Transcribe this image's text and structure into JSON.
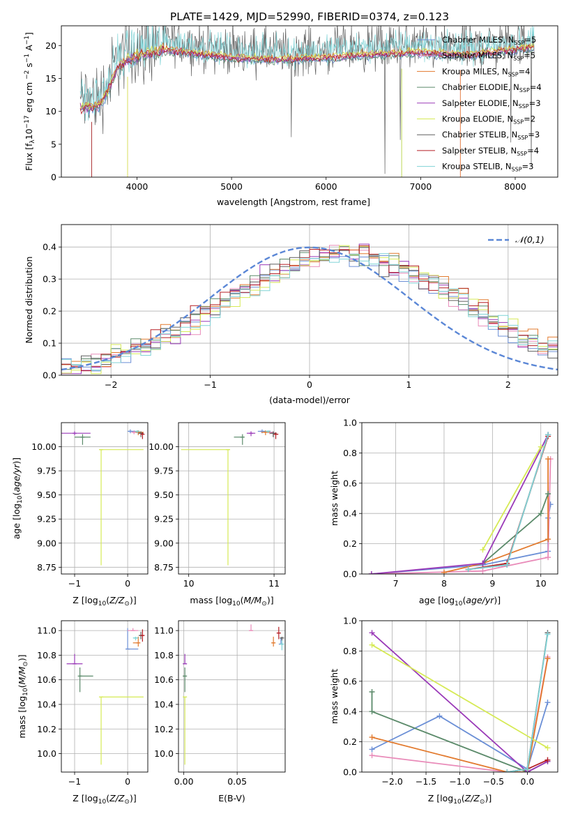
{
  "figure_title": "PLATE=1429, MJD=52990, FIBERID=0374, z=0.123",
  "models": [
    {
      "name": "Chabrier MILES, N",
      "nssp": "5",
      "color": "#6b8fd6"
    },
    {
      "name": "Salpeter MILES, N",
      "nssp": "5",
      "color": "#e98bb9"
    },
    {
      "name": "Kroupa MILES, N",
      "nssp": "4",
      "color": "#e27a2e"
    },
    {
      "name": "Chabrier ELODIE, N",
      "nssp": "4",
      "color": "#5b8a6a"
    },
    {
      "name": "Salpeter ELODIE, N",
      "nssp": "3",
      "color": "#9a3ab8"
    },
    {
      "name": "Kroupa ELODIE, N",
      "nssp": "2",
      "color": "#d6ea55"
    },
    {
      "name": "Chabrier STELIB, N",
      "nssp": "3",
      "color": "#606060"
    },
    {
      "name": "Salpeter STELIB, N",
      "nssp": "4",
      "color": "#b51e24"
    },
    {
      "name": "Kroupa STELIB, N",
      "nssp": "3",
      "color": "#7fd3d6"
    }
  ],
  "nssp_sub": "SSP",
  "chart_data": [
    {
      "id": "spectrum",
      "type": "line",
      "xlabel": "wavelength [Angstrom, rest frame]",
      "ylabel_parts": [
        "Flux [f",
        "λ",
        "10",
        "−17",
        "erg cm",
        "−2",
        "s",
        "−1",
        "A",
        "−1",
        "]"
      ],
      "xlim": [
        3200,
        8450
      ],
      "ylim": [
        0,
        23
      ],
      "xticks": [
        "4000",
        "5000",
        "6000",
        "7000",
        "8000"
      ],
      "yticks": [
        "0",
        "5",
        "10",
        "15",
        "20"
      ],
      "data_start": 3400,
      "data_end": 8200,
      "continuum_knots": [
        [
          3400,
          10.2
        ],
        [
          3600,
          10.5
        ],
        [
          3700,
          13
        ],
        [
          3800,
          16.5
        ],
        [
          4000,
          18
        ],
        [
          4300,
          19
        ],
        [
          4600,
          18.5
        ],
        [
          5000,
          17.8
        ],
        [
          5500,
          17.5
        ],
        [
          6000,
          17.8
        ],
        [
          6500,
          18.3
        ],
        [
          7000,
          18.6
        ],
        [
          7500,
          18.2
        ],
        [
          8000,
          19
        ],
        [
          8200,
          19.5
        ]
      ],
      "gray_spectrum_offset": 1.5
    },
    {
      "id": "residuals",
      "type": "step-histogram",
      "xlabel": "(data-model)/error",
      "ylabel": "Normed distribution",
      "xlim": [
        -2.5,
        2.5
      ],
      "ylim": [
        0,
        0.47
      ],
      "xticks": [
        "−2",
        "−1",
        "0",
        "1",
        "2"
      ],
      "yticks": [
        "0.0",
        "0.1",
        "0.2",
        "0.3",
        "0.4"
      ],
      "reference_label": "𝒩(0,1)",
      "reference_color": "#5b87d6",
      "bin_width": 0.1,
      "peak_center": 0.35,
      "peak_sigma": 1.15,
      "peak_height": 0.38
    },
    {
      "id": "age_vs_Z",
      "type": "errorbar",
      "xlabel": "Z [log10(Z/Z☉)]",
      "ylabel": "age  [log10(age/yr)]",
      "xlim": [
        -1.25,
        0.38
      ],
      "ylim": [
        8.68,
        10.25
      ],
      "xticks": [
        "−1",
        "0"
      ],
      "yticks": [
        "8.75",
        "9.00",
        "9.25",
        "9.50",
        "9.75",
        "10.00"
      ],
      "points": [
        {
          "m": 4,
          "x": -1.0,
          "y": 10.14,
          "xe": [
            0.3,
            0.3
          ],
          "ye": [
            0.02,
            0.02
          ]
        },
        {
          "m": 3,
          "x": -0.85,
          "y": 10.1,
          "xe": [
            0.15,
            0.15
          ],
          "ye": [
            0.08,
            0.03
          ]
        },
        {
          "m": 5,
          "x": -0.5,
          "y": 9.97,
          "xe": [
            0.0,
            0.8
          ],
          "ye": [
            1.2,
            0.0
          ]
        },
        {
          "m": 0,
          "x": 0.05,
          "y": 10.16,
          "xe": [
            0.05,
            0.1
          ],
          "ye": [
            0.02,
            0.02
          ]
        },
        {
          "m": 1,
          "x": 0.12,
          "y": 10.15,
          "xe": [
            0.05,
            0.1
          ],
          "ye": [
            0.02,
            0.02
          ]
        },
        {
          "m": 2,
          "x": 0.2,
          "y": 10.15,
          "xe": [
            0.05,
            0.1
          ],
          "ye": [
            0.03,
            0.02
          ]
        },
        {
          "m": 6,
          "x": 0.25,
          "y": 10.14,
          "xe": [
            0.05,
            0.05
          ],
          "ye": [
            0.04,
            0.02
          ]
        },
        {
          "m": 7,
          "x": 0.28,
          "y": 10.13,
          "xe": [
            0.03,
            0.02
          ],
          "ye": [
            0.05,
            0.02
          ]
        },
        {
          "m": 8,
          "x": 0.18,
          "y": 10.16,
          "xe": [
            0.04,
            0.05
          ],
          "ye": [
            0.02,
            0.01
          ]
        }
      ]
    },
    {
      "id": "age_vs_mass",
      "type": "errorbar",
      "xlabel": "mass [log10(M/M☉)]",
      "ylabel": "",
      "xlim": [
        9.88,
        11.13
      ],
      "ylim": [
        8.68,
        10.25
      ],
      "xticks": [
        "10",
        "11"
      ],
      "yticks": [
        "8.75",
        "9.00",
        "9.25",
        "9.50",
        "9.75",
        "10.00"
      ],
      "points": [
        {
          "m": 5,
          "x": 10.46,
          "y": 9.97,
          "xe": [
            0.55,
            0.0
          ],
          "ye": [
            1.2,
            0.0
          ]
        },
        {
          "m": 3,
          "x": 10.63,
          "y": 10.1,
          "xe": [
            0.1,
            0.0
          ],
          "ye": [
            0.08,
            0.03
          ]
        },
        {
          "m": 4,
          "x": 10.73,
          "y": 10.14,
          "xe": [
            0.05,
            0.05
          ],
          "ye": [
            0.03,
            0.02
          ]
        },
        {
          "m": 0,
          "x": 10.86,
          "y": 10.16,
          "xe": [
            0.05,
            0.05
          ],
          "ye": [
            0.02,
            0.02
          ]
        },
        {
          "m": 1,
          "x": 10.95,
          "y": 10.15,
          "xe": [
            0.05,
            0.05
          ],
          "ye": [
            0.02,
            0.02
          ]
        },
        {
          "m": 2,
          "x": 10.9,
          "y": 10.15,
          "xe": [
            0.05,
            0.05
          ],
          "ye": [
            0.03,
            0.02
          ]
        },
        {
          "m": 6,
          "x": 10.99,
          "y": 10.14,
          "xe": [
            0.04,
            0.04
          ],
          "ye": [
            0.04,
            0.02
          ]
        },
        {
          "m": 7,
          "x": 11.02,
          "y": 10.13,
          "xe": [
            0.02,
            0.03
          ],
          "ye": [
            0.05,
            0.02
          ]
        },
        {
          "m": 8,
          "x": 10.93,
          "y": 10.16,
          "xe": [
            0.03,
            0.03
          ],
          "ye": [
            0.02,
            0.01
          ]
        }
      ]
    },
    {
      "id": "weight_vs_age",
      "type": "line",
      "xlabel": "age  [log10(age/yr)]",
      "ylabel": "mass weight",
      "xlim": [
        6.3,
        10.35
      ],
      "ylim": [
        0,
        1
      ],
      "xticks": [
        "7",
        "8",
        "9",
        "10"
      ],
      "yticks": [
        "0.0",
        "0.2",
        "0.4",
        "0.6",
        "0.8",
        "1.0"
      ],
      "series": [
        {
          "m": 0,
          "pts": [
            [
              6.5,
              0.0
            ],
            [
              8.8,
              0.06
            ],
            [
              10.15,
              0.15
            ],
            [
              10.15,
              0.37
            ],
            [
              10.2,
              0.46
            ]
          ]
        },
        {
          "m": 1,
          "pts": [
            [
              6.5,
              0.0
            ],
            [
              8.8,
              0.02
            ],
            [
              10.15,
              0.11
            ],
            [
              10.2,
              0.76
            ]
          ]
        },
        {
          "m": 2,
          "pts": [
            [
              8.0,
              0.01
            ],
            [
              8.8,
              0.07
            ],
            [
              10.15,
              0.23
            ],
            [
              10.15,
              0.76
            ]
          ]
        },
        {
          "m": 3,
          "pts": [
            [
              8.8,
              0.07
            ],
            [
              10.0,
              0.4
            ],
            [
              10.15,
              0.53
            ]
          ]
        },
        {
          "m": 4,
          "pts": [
            [
              6.5,
              0.0
            ],
            [
              8.8,
              0.07
            ],
            [
              10.15,
              0.92
            ]
          ]
        },
        {
          "m": 5,
          "pts": [
            [
              8.8,
              0.16
            ],
            [
              10.0,
              0.84
            ]
          ]
        },
        {
          "m": 6,
          "pts": [
            [
              8.5,
              0.03
            ],
            [
              9.3,
              0.06
            ],
            [
              10.15,
              0.92
            ]
          ]
        },
        {
          "m": 7,
          "pts": [
            [
              8.5,
              0.03
            ],
            [
              9.3,
              0.07
            ],
            [
              10.15,
              0.91
            ]
          ]
        },
        {
          "m": 8,
          "pts": [
            [
              8.5,
              0.03
            ],
            [
              9.3,
              0.06
            ],
            [
              10.15,
              0.92
            ]
          ]
        }
      ]
    },
    {
      "id": "mass_vs_Z",
      "type": "errorbar",
      "xlabel": "Z [log10(Z/Z☉)]",
      "ylabel": "mass [log10(M/M☉)]",
      "xlim": [
        -1.25,
        0.38
      ],
      "ylim": [
        9.85,
        11.08
      ],
      "xticks": [
        "−1",
        "0"
      ],
      "yticks": [
        "10.0",
        "10.2",
        "10.4",
        "10.6",
        "10.8",
        "11.0"
      ],
      "points": [
        {
          "m": 4,
          "x": -1.0,
          "y": 10.73,
          "xe": [
            0.15,
            0.15
          ],
          "ye": [
            0.0,
            0.08
          ]
        },
        {
          "m": 3,
          "x": -0.9,
          "y": 10.63,
          "xe": [
            0.0,
            0.25
          ],
          "ye": [
            0.13,
            0.07
          ]
        },
        {
          "m": 5,
          "x": -0.5,
          "y": 10.46,
          "xe": [
            0.0,
            0.8
          ],
          "ye": [
            0.55,
            0.0
          ]
        },
        {
          "m": 0,
          "x": 0.0,
          "y": 10.85,
          "xe": [
            0.0,
            0.2
          ],
          "ye": [
            0.0,
            0.17
          ]
        },
        {
          "m": 1,
          "x": 0.1,
          "y": 11.0,
          "xe": [
            0.1,
            0.1
          ],
          "ye": [
            0.0,
            0.02
          ]
        },
        {
          "m": 2,
          "x": 0.2,
          "y": 10.9,
          "xe": [
            0.1,
            0.0
          ],
          "ye": [
            0.03,
            0.05
          ]
        },
        {
          "m": 6,
          "x": 0.25,
          "y": 10.96,
          "xe": [
            0.02,
            0.02
          ],
          "ye": [
            0.03,
            0.03
          ]
        },
        {
          "m": 7,
          "x": 0.28,
          "y": 10.96,
          "xe": [
            0.02,
            0.02
          ],
          "ye": [
            0.05,
            0.05
          ]
        },
        {
          "m": 8,
          "x": 0.15,
          "y": 10.94,
          "xe": [
            0.05,
            0.05
          ],
          "ye": [
            0.02,
            0.01
          ]
        }
      ]
    },
    {
      "id": "mass_vs_EBV",
      "type": "errorbar",
      "xlabel": "E(B-V)",
      "ylabel": "",
      "xlim": [
        -0.005,
        0.095
      ],
      "ylim": [
        9.85,
        11.08
      ],
      "xticks": [
        "0.00",
        "0.05"
      ],
      "yticks": [
        "10.0",
        "10.2",
        "10.4",
        "10.6",
        "10.8",
        "11.0"
      ],
      "points": [
        {
          "m": 5,
          "x": 0.001,
          "y": 10.46,
          "xe": [
            0,
            0
          ],
          "ye": [
            0.55,
            0.0
          ]
        },
        {
          "m": 4,
          "x": 0.001,
          "y": 10.73,
          "xe": [
            0,
            0
          ],
          "ye": [
            0.0,
            0.08
          ]
        },
        {
          "m": 3,
          "x": 0.001,
          "y": 10.63,
          "xe": [
            0,
            0
          ],
          "ye": [
            0.13,
            0.07
          ]
        },
        {
          "m": 1,
          "x": 0.063,
          "y": 11.0,
          "xe": [
            0,
            0
          ],
          "ye": [
            0.0,
            0.05
          ]
        },
        {
          "m": 2,
          "x": 0.084,
          "y": 10.9,
          "xe": [
            0,
            0
          ],
          "ye": [
            0.03,
            0.05
          ]
        },
        {
          "m": 7,
          "x": 0.089,
          "y": 10.98,
          "xe": [
            0,
            0
          ],
          "ye": [
            0.05,
            0.05
          ]
        },
        {
          "m": 0,
          "x": 0.091,
          "y": 10.89,
          "xe": [
            0,
            0
          ],
          "ye": [
            0.0,
            0.05
          ]
        },
        {
          "m": 8,
          "x": 0.092,
          "y": 10.89,
          "xe": [
            0,
            0
          ],
          "ye": [
            0.05,
            0.05
          ]
        },
        {
          "m": 6,
          "x": 0.092,
          "y": 10.94,
          "xe": [
            0,
            0
          ],
          "ye": [
            0.02,
            0.01
          ]
        }
      ]
    },
    {
      "id": "weight_vs_Z",
      "type": "line",
      "xlabel": "Z [log10(Z/Z☉)]",
      "ylabel": "mass weight",
      "xlim": [
        -2.45,
        0.45
      ],
      "ylim": [
        0,
        1
      ],
      "xticks": [
        "−2.0",
        "−1.5",
        "−1.0",
        "−0.5",
        "0.0"
      ],
      "yticks": [
        "0.0",
        "0.2",
        "0.4",
        "0.6",
        "0.8",
        "1.0"
      ],
      "series": [
        {
          "m": 0,
          "pts": [
            [
              -2.3,
              0.15
            ],
            [
              -1.3,
              0.37
            ],
            [
              0.0,
              0.02
            ],
            [
              0.3,
              0.46
            ]
          ]
        },
        {
          "m": 1,
          "pts": [
            [
              -2.3,
              0.11
            ],
            [
              -0.3,
              0.0
            ],
            [
              0.0,
              0.02
            ],
            [
              0.3,
              0.76
            ]
          ]
        },
        {
          "m": 2,
          "pts": [
            [
              -2.3,
              0.23
            ],
            [
              -0.3,
              0.0
            ],
            [
              0.0,
              0.0
            ],
            [
              0.3,
              0.75
            ]
          ]
        },
        {
          "m": 3,
          "pts": [
            [
              -2.3,
              0.53
            ],
            [
              -2.3,
              0.4
            ],
            [
              0.0,
              0.0
            ],
            [
              0.3,
              0.07
            ]
          ]
        },
        {
          "m": 4,
          "pts": [
            [
              -2.3,
              0.92
            ],
            [
              0.0,
              0.0
            ],
            [
              0.3,
              0.07
            ]
          ]
        },
        {
          "m": 5,
          "pts": [
            [
              -2.3,
              0.84
            ],
            [
              0.3,
              0.16
            ]
          ]
        },
        {
          "m": 6,
          "pts": [
            [
              -0.3,
              0.0
            ],
            [
              0.0,
              0.02
            ],
            [
              0.3,
              0.92
            ]
          ]
        },
        {
          "m": 7,
          "pts": [
            [
              -0.3,
              0.0
            ],
            [
              0.0,
              0.02
            ],
            [
              0.3,
              0.08
            ]
          ]
        },
        {
          "m": 8,
          "pts": [
            [
              -0.3,
              0.0
            ],
            [
              0.0,
              0.02
            ],
            [
              0.3,
              0.91
            ]
          ]
        }
      ]
    }
  ]
}
